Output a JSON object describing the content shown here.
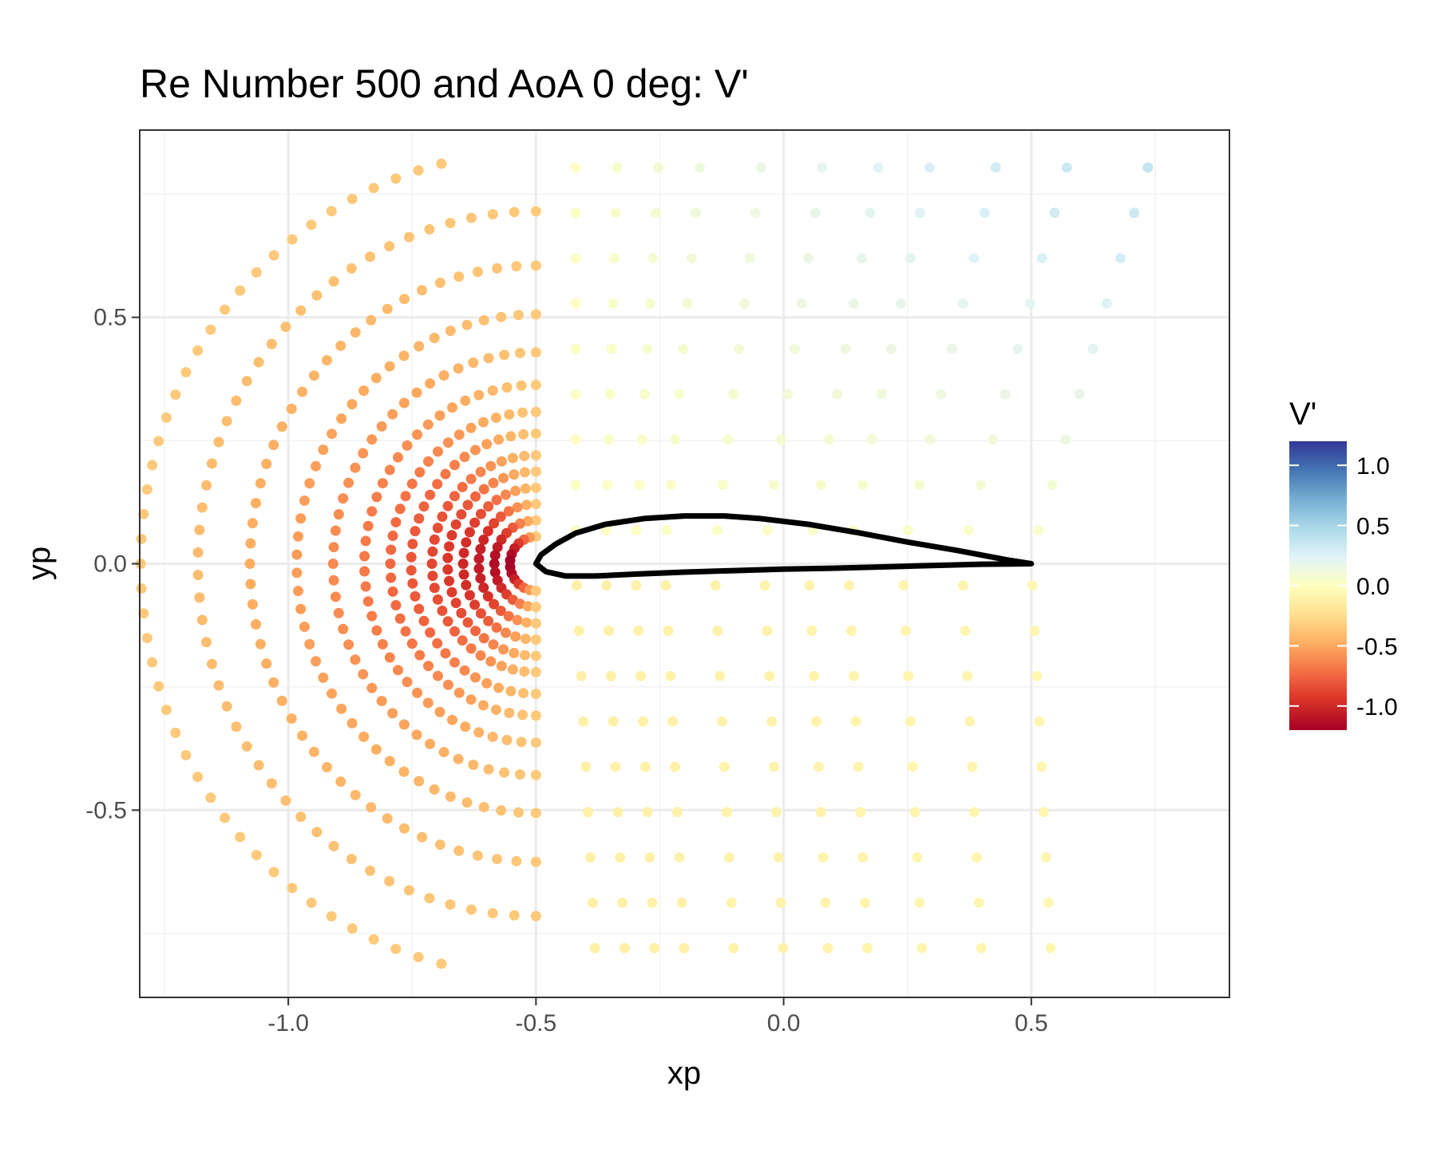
{
  "chart_data": {
    "type": "scatter",
    "title": "Re Number 500 and AoA 0 deg: V'",
    "xlabel": "xp",
    "ylabel": "yp",
    "xlim": [
      -1.3,
      0.9
    ],
    "ylim": [
      -0.88,
      0.88
    ],
    "x_ticks": [
      -1.0,
      -0.5,
      0.0,
      0.5
    ],
    "x_tick_labels": [
      "-1.0",
      "-0.5",
      "0.0",
      "0.5"
    ],
    "y_ticks": [
      -0.5,
      0.0,
      0.5
    ],
    "y_tick_labels": [
      "-0.5",
      "0.0",
      "0.5"
    ],
    "grid": true,
    "background": "#ffffff",
    "legend": {
      "title": "V'",
      "position": "right",
      "type": "colorbar",
      "range": [
        -1.2,
        1.2
      ],
      "ticks": [
        1.0,
        0.5,
        0.0,
        -0.5,
        -1.0
      ],
      "tick_labels": [
        "1.0",
        "0.5",
        "0.0",
        "-0.5",
        "-1.0"
      ],
      "palette": [
        "#a50026",
        "#d73027",
        "#f46d43",
        "#fdae61",
        "#fee090",
        "#ffffbf",
        "#e0f3f8",
        "#abd9e9",
        "#74add1",
        "#4575b4",
        "#313695"
      ]
    },
    "grid_field": {
      "description_of_values": "Points at radial rings around the airfoil, V' value per point",
      "x_range": [
        -1.3,
        0.75
      ],
      "y_range": [
        -0.82,
        0.82
      ]
    },
    "airfoil_outline": {
      "x": [
        -0.5,
        -0.49,
        -0.46,
        -0.42,
        -0.36,
        -0.28,
        -0.2,
        -0.12,
        -0.05,
        0.05,
        0.15,
        0.25,
        0.35,
        0.45,
        0.5,
        0.4,
        0.25,
        0.1,
        0.0,
        -0.1,
        -0.2,
        -0.3,
        -0.38,
        -0.44,
        -0.48,
        -0.5
      ],
      "y": [
        0.0,
        0.018,
        0.04,
        0.062,
        0.08,
        0.092,
        0.097,
        0.097,
        0.092,
        0.08,
        0.063,
        0.044,
        0.027,
        0.008,
        0.0,
        -0.001,
        -0.005,
        -0.009,
        -0.011,
        -0.014,
        -0.017,
        -0.021,
        -0.025,
        -0.025,
        -0.016,
        0.0
      ]
    }
  }
}
